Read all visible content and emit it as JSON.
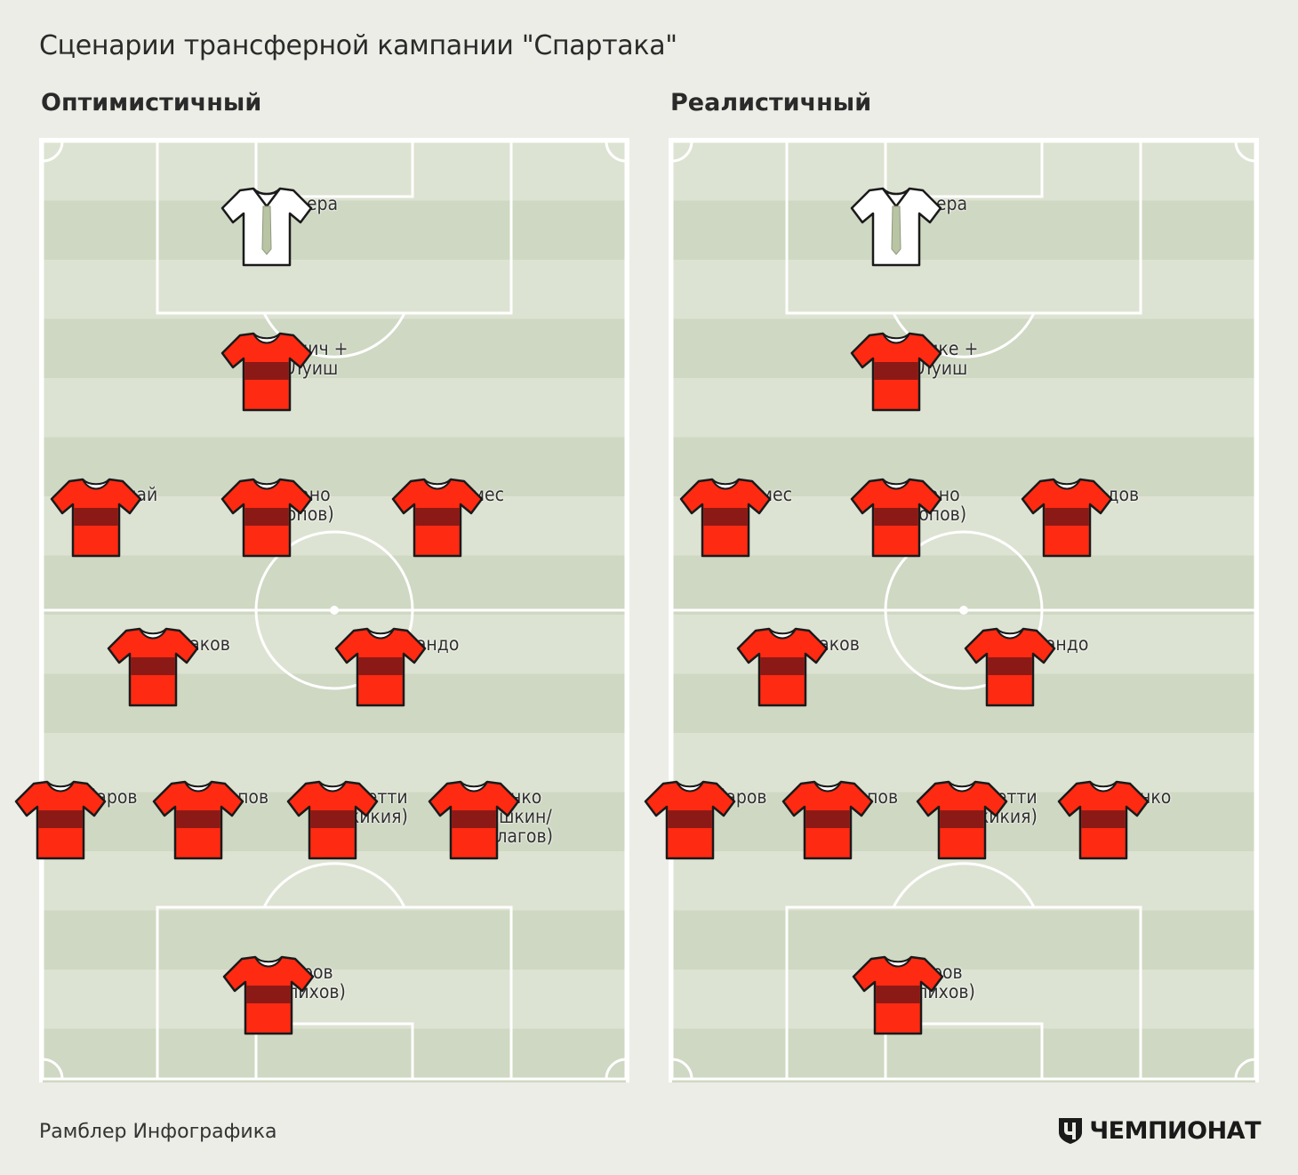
{
  "title": "Сценарии трансферной кампании \"Спартака\"",
  "footer": {
    "credit": "Рамблер Инфографика",
    "brand": "ЧЕМПИОНАТ"
  },
  "colors": {
    "shirt_red": "#ff2a12",
    "shirt_band": "#8b1a16",
    "keeper_shirt": "#ffffff",
    "pitch_light": "#dde3d2",
    "pitch_dark": "#cfd8c2",
    "lines": "#ffffff"
  },
  "scenarios": [
    {
      "title": "Оптимистичный",
      "goalkeeper": {
        "name": "Каррера"
      },
      "forward": {
        "name": "Калинич +\nЗе Луиш"
      },
      "attacking_mid": [
        {
          "name": "Депай"
        },
        {
          "name": "Джано\n(Попов)"
        },
        {
          "name": "Промес"
        }
      ],
      "central_mid": [
        {
          "name": "Глушаков"
        },
        {
          "name": "Фернандо"
        }
      ],
      "defenders": [
        {
          "name": "Комбаров"
        },
        {
          "name": "Кутепов"
        },
        {
          "name": "Боккетти\n(Джикия)"
        },
        {
          "name": "Ещенко\n(Шишкин/\nЦаллагов)"
        }
      ],
      "bottom_keeper": {
        "name": "Ребров\n(Селихов)"
      }
    },
    {
      "title": "Реалистичный",
      "goalkeeper": {
        "name": "Каррера"
      },
      "forward": {
        "name": "Эменике +\nЗе Луиш"
      },
      "attacking_mid": [
        {
          "name": "Промес"
        },
        {
          "name": "Джано\n(-Попов)"
        },
        {
          "name": "Самедов"
        }
      ],
      "central_mid": [
        {
          "name": "Глушаков"
        },
        {
          "name": "Фернандо"
        }
      ],
      "defenders": [
        {
          "name": "Комбаров"
        },
        {
          "name": "Кутепов"
        },
        {
          "name": "Боккетти\n(Джикия)"
        },
        {
          "name": "Ещенко"
        }
      ],
      "bottom_keeper": {
        "name": "Ребров\n(Селихов)"
      }
    }
  ]
}
